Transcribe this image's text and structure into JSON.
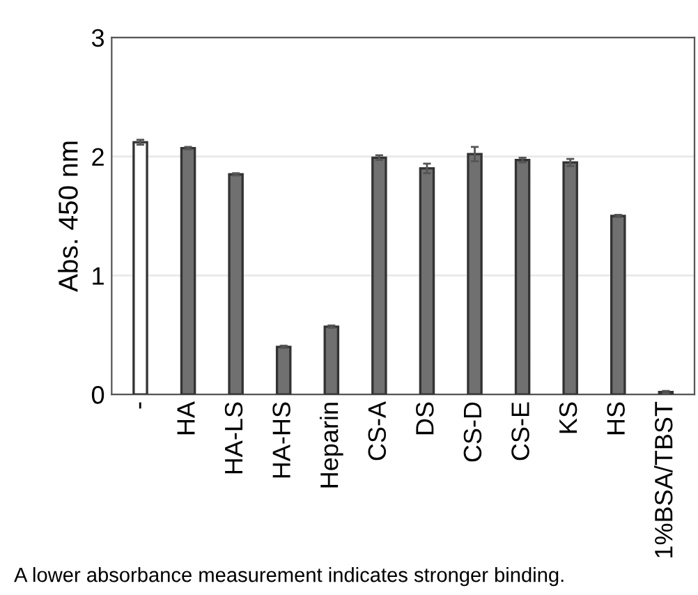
{
  "chart_data": {
    "type": "bar",
    "ylabel": "Abs. 450 nm",
    "categories": [
      "-",
      "HA",
      "HA-LS",
      "HA-HS",
      "Heparin",
      "CS-A",
      "DS",
      "CS-D",
      "CS-E",
      "KS",
      "HS",
      "1%BSA/TBST"
    ],
    "values": [
      2.12,
      2.07,
      1.85,
      0.4,
      0.57,
      1.99,
      1.9,
      2.02,
      1.97,
      1.95,
      1.5,
      0.02
    ],
    "colors": [
      "#ffffff",
      "#707070",
      "#707070",
      "#707070",
      "#707070",
      "#707070",
      "#707070",
      "#707070",
      "#707070",
      "#707070",
      "#707070",
      "#707070"
    ],
    "errors": [
      0.02,
      0.01,
      0.01,
      0.01,
      0.01,
      0.02,
      0.04,
      0.06,
      0.02,
      0.03,
      0.01,
      0.01
    ],
    "ylim": [
      0,
      3
    ],
    "yticks": [
      0,
      1,
      2,
      3
    ],
    "grid": "y",
    "annotations": [
      "A lower absorbance measurement indicates stronger binding."
    ]
  }
}
